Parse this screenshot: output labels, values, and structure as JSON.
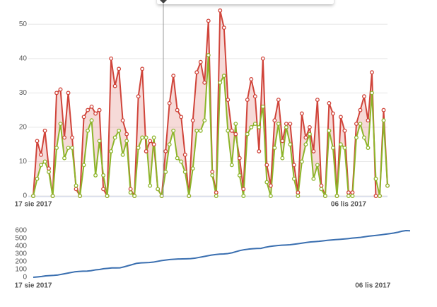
{
  "chart_data": [
    {
      "type": "line",
      "categories": [
        "17 sie 2017",
        null,
        null,
        null,
        null,
        null,
        null,
        null,
        null,
        null,
        null,
        null,
        null,
        null,
        null,
        null,
        null,
        null,
        null,
        null,
        null,
        null,
        null,
        null,
        null,
        null,
        null,
        null,
        null,
        null,
        null,
        null,
        null,
        null,
        null,
        null,
        null,
        null,
        null,
        null,
        null,
        null,
        null,
        null,
        null,
        null,
        null,
        null,
        null,
        null,
        null,
        null,
        null,
        null,
        null,
        null,
        null,
        null,
        null,
        null,
        null,
        null,
        null,
        null,
        null,
        null,
        null,
        null,
        null,
        null,
        null,
        null,
        null,
        null,
        null,
        null,
        null,
        null,
        null,
        null,
        null,
        "06 lis 2017",
        null,
        null,
        null,
        null,
        null,
        null,
        null,
        null,
        null,
        null
      ],
      "series": [
        {
          "color": "#d0443a",
          "values": [
            0,
            16,
            12,
            19,
            8,
            0,
            30,
            31,
            17,
            30,
            17,
            2,
            0,
            23,
            25,
            26,
            24,
            25,
            2,
            0,
            40,
            32,
            37,
            22,
            18,
            2,
            0,
            29,
            37,
            13,
            16,
            15,
            2,
            0,
            13,
            27,
            35,
            25,
            23,
            12,
            0,
            22,
            36,
            39,
            33,
            51,
            7,
            1,
            54,
            49,
            28,
            19,
            18,
            11,
            2,
            28,
            34,
            29,
            13,
            40,
            9,
            3,
            22,
            28,
            16,
            21,
            21,
            9,
            1,
            24,
            17,
            20,
            13,
            28,
            3,
            0,
            27,
            24,
            0,
            23,
            19,
            1,
            1,
            21,
            25,
            29,
            22,
            36,
            0,
            0,
            25,
            3
          ]
        },
        {
          "color": "#8db52a",
          "values": [
            0,
            5,
            9,
            10,
            7,
            0,
            14,
            21,
            11,
            14,
            14,
            3,
            0,
            9,
            19,
            22,
            6,
            16,
            6,
            0,
            13,
            17,
            19,
            12,
            16,
            1,
            0,
            14,
            17,
            17,
            3,
            17,
            2,
            0,
            7,
            15,
            19,
            11,
            10,
            7,
            0,
            8,
            19,
            19,
            22,
            41,
            6,
            0,
            33,
            35,
            19,
            9,
            21,
            6,
            0,
            18,
            20,
            21,
            20,
            26,
            4,
            0,
            14,
            21,
            11,
            20,
            15,
            5,
            0,
            10,
            15,
            18,
            5,
            9,
            2,
            0,
            19,
            14,
            0,
            15,
            14,
            0,
            0,
            17,
            21,
            17,
            14,
            30,
            5,
            0,
            22,
            3
          ]
        }
      ],
      "area_between": true,
      "markers": true,
      "ylim": [
        0,
        55
      ],
      "yticks": [
        0,
        10,
        20,
        30,
        40,
        50
      ],
      "grid": true
    },
    {
      "type": "line",
      "categories": [
        "17 sie 2017",
        null,
        null,
        null,
        null,
        null,
        null,
        null,
        null,
        null,
        null,
        null,
        null,
        null,
        null,
        null,
        null,
        null,
        null,
        null,
        null,
        null,
        null,
        null,
        null,
        null,
        null,
        null,
        null,
        null,
        null,
        null,
        null,
        null,
        null,
        null,
        null,
        null,
        null,
        null,
        null,
        null,
        null,
        null,
        null,
        null,
        null,
        null,
        null,
        null,
        null,
        null,
        null,
        null,
        null,
        null,
        null,
        null,
        null,
        null,
        null,
        null,
        null,
        null,
        null,
        null,
        null,
        null,
        null,
        null,
        null,
        null,
        null,
        null,
        null,
        null,
        null,
        null,
        null,
        null,
        null,
        null,
        "06 lis 2017",
        null,
        null,
        null,
        null,
        null,
        null,
        null,
        null,
        null
      ],
      "series": [
        {
          "color": "#3a6fb0",
          "values": [
            0,
            5,
            10,
            18,
            22,
            25,
            30,
            40,
            50,
            60,
            70,
            75,
            78,
            80,
            85,
            95,
            100,
            110,
            115,
            120,
            120,
            122,
            135,
            150,
            165,
            180,
            185,
            188,
            190,
            195,
            205,
            215,
            222,
            228,
            232,
            235,
            236,
            238,
            240,
            245,
            255,
            265,
            275,
            285,
            292,
            298,
            300,
            305,
            315,
            330,
            345,
            355,
            362,
            367,
            370,
            372,
            385,
            395,
            402,
            408,
            412,
            415,
            418,
            425,
            432,
            440,
            448,
            455,
            458,
            462,
            468,
            475,
            480,
            484,
            488,
            492,
            497,
            503,
            508,
            513,
            520,
            528,
            534,
            540,
            546,
            553,
            560,
            568,
            578,
            592,
            600,
            598
          ]
        }
      ],
      "area_between": false,
      "markers": false,
      "ylim": [
        0,
        650
      ],
      "yticks": [
        0,
        100,
        200,
        300,
        400,
        500,
        600
      ],
      "grid": false
    }
  ]
}
